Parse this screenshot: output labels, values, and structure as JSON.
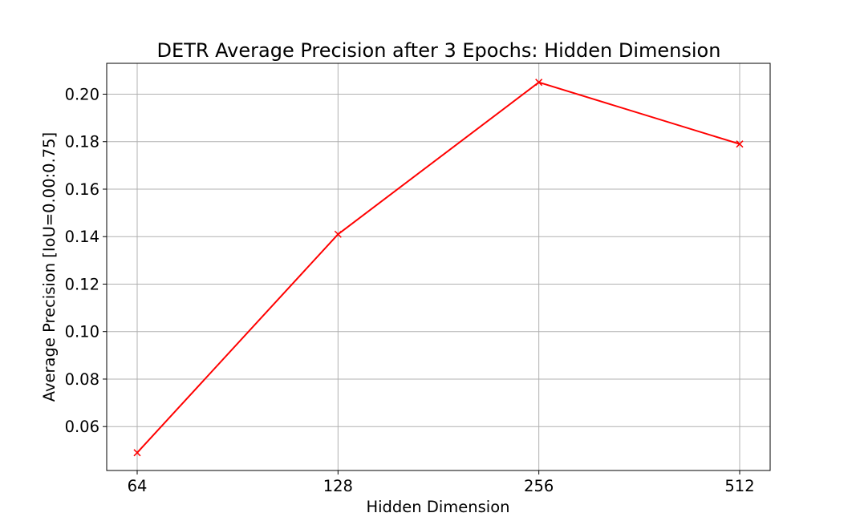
{
  "chart_data": {
    "type": "line",
    "title": "DETR Average Precision after 3 Epochs: Hidden Dimension",
    "xlabel": "Hidden Dimension",
    "ylabel": "Average Precision [IoU=0.00:0.75]",
    "categories": [
      "64",
      "128",
      "256",
      "512"
    ],
    "series": [
      {
        "values": [
          0.049,
          0.141,
          0.205,
          0.179
        ],
        "color": "#ff0000",
        "marker": "x"
      }
    ],
    "ylim": [
      0.0415,
      0.213
    ],
    "yticks": [
      0.06,
      0.08,
      0.1,
      0.12,
      0.14,
      0.16,
      0.18,
      0.2
    ],
    "ytick_labels": [
      "0.06",
      "0.08",
      "0.10",
      "0.12",
      "0.14",
      "0.16",
      "0.18",
      "0.20"
    ],
    "grid": true
  }
}
